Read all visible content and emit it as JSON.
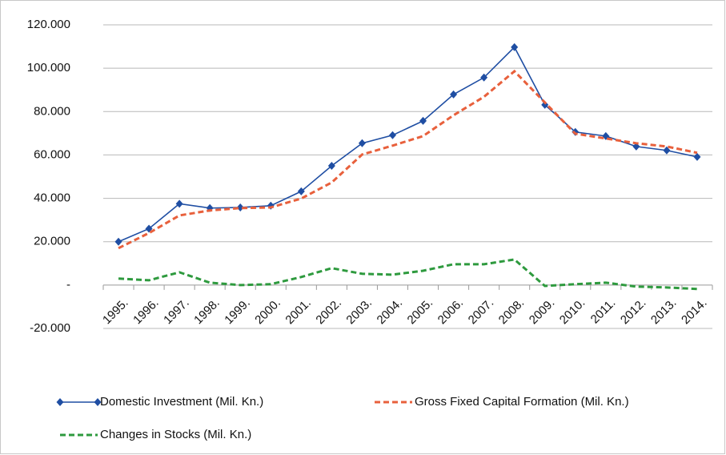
{
  "chart_data": {
    "type": "line",
    "categories": [
      "1995.",
      "1996.",
      "1997.",
      "1998.",
      "1999.",
      "2000.",
      "2001.",
      "2002.",
      "2003.",
      "2004.",
      "2005.",
      "2006.",
      "2007.",
      "2008.",
      "2009.",
      "2010.",
      "2011.",
      "2012.",
      "2013.",
      "2014."
    ],
    "series": [
      {
        "name": "Domestic Investment (Mil. Kn.)",
        "color": "#1f4ea3",
        "line_style": "solid",
        "marker": "diamond",
        "values": [
          20000,
          26000,
          37500,
          35500,
          35800,
          36600,
          43200,
          55000,
          65400,
          69100,
          75700,
          87900,
          95700,
          109700,
          83100,
          70600,
          68700,
          63900,
          62100,
          59100
        ]
      },
      {
        "name": "Gross Fixed Capital Formation (Mil. Kn.)",
        "color": "#e8603c",
        "line_style": "dashed",
        "marker": "none",
        "values": [
          17000,
          24000,
          32100,
          34400,
          35500,
          35800,
          39900,
          47300,
          60200,
          64300,
          68700,
          78300,
          86800,
          98600,
          84200,
          69800,
          67600,
          65400,
          63900,
          61000
        ]
      },
      {
        "name": "Changes in Stocks (Mil. Kn.)",
        "color": "#2e9a3e",
        "line_style": "dashed",
        "marker": "none",
        "values": [
          3000,
          2200,
          5900,
          1100,
          0,
          400,
          3700,
          7800,
          5200,
          4800,
          6600,
          9600,
          9600,
          11800,
          -400,
          400,
          1100,
          -700,
          -1100,
          -1800
        ]
      }
    ],
    "ylim": [
      -20000,
      120000
    ],
    "yticks": [
      {
        "value": -20000,
        "label": "-20.000"
      },
      {
        "value": 0,
        "label": "-"
      },
      {
        "value": 20000,
        "label": "20.000"
      },
      {
        "value": 40000,
        "label": "40.000"
      },
      {
        "value": 60000,
        "label": "60.000"
      },
      {
        "value": 80000,
        "label": "80.000"
      },
      {
        "value": 100000,
        "label": "100.000"
      },
      {
        "value": 120000,
        "label": "120.000"
      }
    ],
    "grid": true,
    "legend": "bottom"
  }
}
